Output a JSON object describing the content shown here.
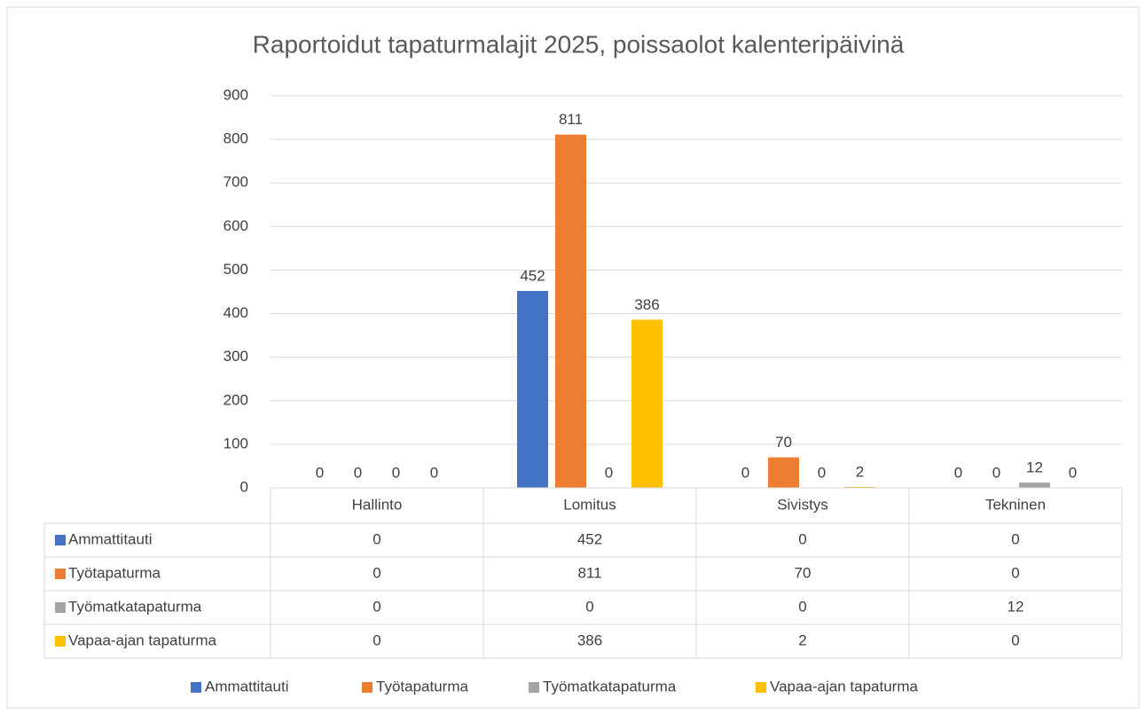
{
  "chart_data": {
    "type": "bar",
    "title": "Raportoidut tapaturmalajit 2025, poissaolot kalenteripäivinä",
    "categories": [
      "Hallinto",
      "Lomitus",
      "Sivistys",
      "Tekninen"
    ],
    "series": [
      {
        "name": "Ammattitauti",
        "color": "#4472c4",
        "values": [
          0,
          452,
          0,
          0
        ]
      },
      {
        "name": "Työtapaturma",
        "color": "#ed7d31",
        "values": [
          0,
          811,
          70,
          0
        ]
      },
      {
        "name": "Työmatkatapaturma",
        "color": "#a5a5a5",
        "values": [
          0,
          0,
          0,
          12
        ]
      },
      {
        "name": "Vapaa-ajan tapaturma",
        "color": "#ffc000",
        "values": [
          0,
          386,
          2,
          0
        ]
      }
    ],
    "ylim": [
      0,
      900
    ],
    "yticks": [
      0,
      100,
      200,
      300,
      400,
      500,
      600,
      700,
      800,
      900
    ],
    "grid": true,
    "legend": "bottom"
  }
}
